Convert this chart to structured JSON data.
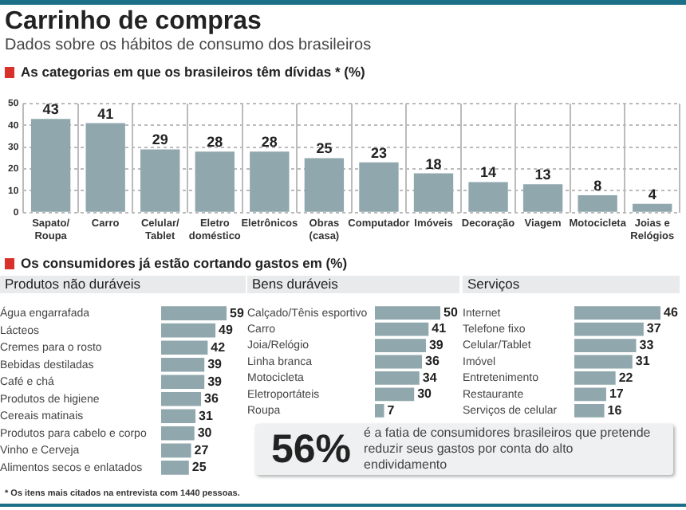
{
  "chart_data": [
    {
      "type": "bar",
      "title": "Carrinho de compras",
      "subtitle": "Dados sobre os hábitos de consumo dos brasileiros",
      "annotations": [
        "As categorias em que os brasileiros têm dívidas * (%)"
      ],
      "categories": [
        "Sapato/Roupa",
        "Carro",
        "Celular/Tablet",
        "Eletro doméstico",
        "Eletrônicos",
        "Obras (casa)",
        "Computador",
        "Imóveis",
        "Decoração",
        "Viagem",
        "Motocicleta",
        "Joias e Relógios"
      ],
      "values": [
        43,
        41,
        29,
        28,
        28,
        25,
        23,
        18,
        14,
        13,
        8,
        4
      ],
      "color": "#8fa7ad",
      "ylim": [
        0,
        50
      ],
      "yticks": [
        0,
        10,
        20,
        30,
        40,
        50
      ],
      "grid": true,
      "data_labels": true
    },
    {
      "type": "bar",
      "orientation": "horizontal",
      "title": "Produtos não duráveis",
      "annotations": [
        "Os consumidores já estão cortando gastos em  (%)"
      ],
      "categories": [
        "Água engarrafada",
        "Lácteos",
        "Cremes para o rosto",
        "Bebidas destiladas",
        "Café e chá",
        "Produtos de higiene",
        "Cereais matinais",
        "Produtos para cabelo e corpo",
        "Vinho e Cerveja",
        "Alimentos secos e enlatados"
      ],
      "values": [
        59,
        49,
        42,
        39,
        39,
        36,
        31,
        30,
        27,
        25
      ],
      "color": "#8fa7ad",
      "data_labels": true
    },
    {
      "type": "bar",
      "orientation": "horizontal",
      "title": "Bens duráveis",
      "categories": [
        "Calçado/Tênis esportivo",
        "Carro",
        "Joia/Relógio",
        "Linha branca",
        "Motocicleta",
        "Eletroportáteis",
        "Roupa"
      ],
      "values": [
        50,
        41,
        39,
        36,
        34,
        30,
        7
      ],
      "color": "#8fa7ad",
      "data_labels": true
    },
    {
      "type": "bar",
      "orientation": "horizontal",
      "title": "Serviços",
      "categories": [
        "Internet",
        "Telefone fixo",
        "Celular/Tablet",
        "Imóvel",
        "Entretenimento",
        "Restaurante",
        "Serviços de celular"
      ],
      "values": [
        46,
        37,
        33,
        31,
        22,
        17,
        16
      ],
      "color": "#8fa7ad",
      "data_labels": true
    },
    {
      "type": "other",
      "title": "56%",
      "subtitle": "é a fatia de consumidores brasileiros que pretende reduzir seus gastos por conta do alto endividamento",
      "annotations": [
        "* Os itens mais citados na entrevista com 1440 pessoas."
      ]
    }
  ]
}
